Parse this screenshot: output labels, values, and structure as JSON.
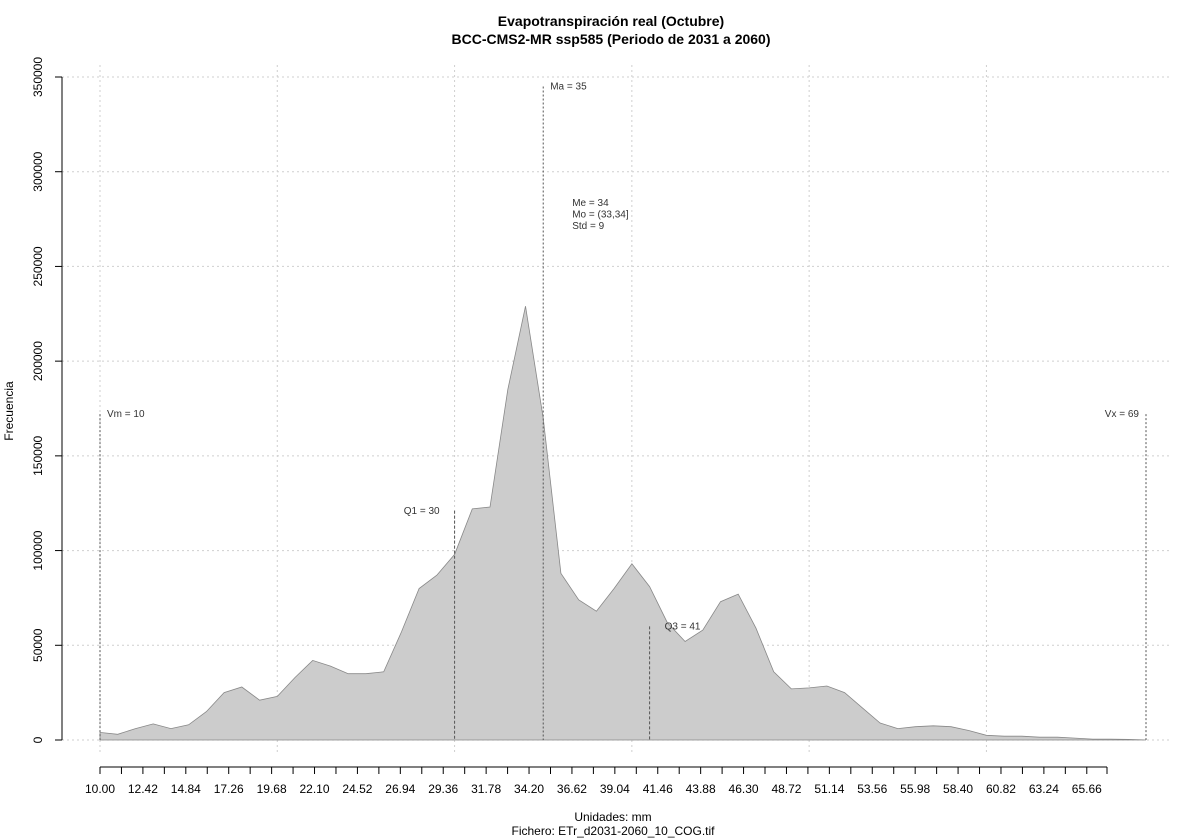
{
  "chart_data": {
    "type": "area",
    "title": "Evapotranspiración real (Octubre)",
    "subtitle": "BCC-CMS2-MR ssp585 (Periodo de 2031 a 2060)",
    "xlabel": "Unidades: mm",
    "file_label": "Fichero: ETr_d2031-2060_10_COG.tif",
    "ylabel": "Frecuencia",
    "xlim": [
      10,
      69
    ],
    "ylim": [
      0,
      350000
    ],
    "x_ticks": [
      "10.00",
      "12.42",
      "14.84",
      "17.26",
      "19.68",
      "22.10",
      "24.52",
      "26.94",
      "29.36",
      "31.78",
      "34.20",
      "36.62",
      "39.04",
      "41.46",
      "43.88",
      "46.30",
      "48.72",
      "51.14",
      "53.56",
      "55.98",
      "58.40",
      "60.82",
      "63.24",
      "65.66"
    ],
    "y_ticks": [
      "0",
      "50000",
      "100000",
      "150000",
      "200000",
      "250000",
      "300000",
      "350000"
    ],
    "grid": true,
    "fill_color": "#cccccc",
    "line_color": "#888888",
    "series": [
      {
        "x": [
          10,
          11,
          12,
          13,
          14,
          15,
          16,
          17,
          18,
          19,
          20,
          21,
          22,
          23,
          24,
          25,
          26,
          27,
          28,
          29,
          30,
          31,
          32,
          33,
          34,
          35,
          36,
          37,
          38,
          39,
          40,
          41,
          42,
          43,
          44,
          45,
          46,
          47,
          48,
          49,
          50,
          51,
          52,
          53,
          54,
          55,
          56,
          57,
          58,
          59,
          60,
          61,
          62,
          63,
          64,
          65,
          66,
          67,
          68,
          69
        ],
        "values": [
          4000,
          3000,
          6000,
          8500,
          6000,
          8000,
          15000,
          25000,
          28000,
          21000,
          23000,
          33000,
          42000,
          39000,
          35000,
          35000,
          36000,
          57000,
          80000,
          87000,
          98000,
          122000,
          123000,
          185000,
          229000,
          170000,
          88000,
          74000,
          68000,
          80000,
          93000,
          81000,
          62000,
          52000,
          58000,
          73000,
          77000,
          59000,
          36000,
          27000,
          27500,
          28500,
          25000,
          17000,
          9000,
          6000,
          7000,
          7500,
          7000,
          5000,
          2500,
          2000,
          2000,
          1500,
          1500,
          1000,
          500,
          500,
          300,
          0
        ]
      }
    ],
    "annotations": {
      "vm": {
        "label": "Vm = 10",
        "x": 10,
        "y": 172000
      },
      "q1": {
        "label": "Q1 = 30",
        "x": 30,
        "y": 121000
      },
      "ma": {
        "label": "Ma = 35",
        "x": 35,
        "y": 345000
      },
      "q3": {
        "label": "Q3 = 41",
        "x": 41,
        "y": 60000
      },
      "vx": {
        "label": "Vx = 69",
        "x": 69,
        "y": 172000
      },
      "stats": [
        "Me = 34",
        "Mo = (33,34]",
        "Std = 9"
      ]
    }
  }
}
